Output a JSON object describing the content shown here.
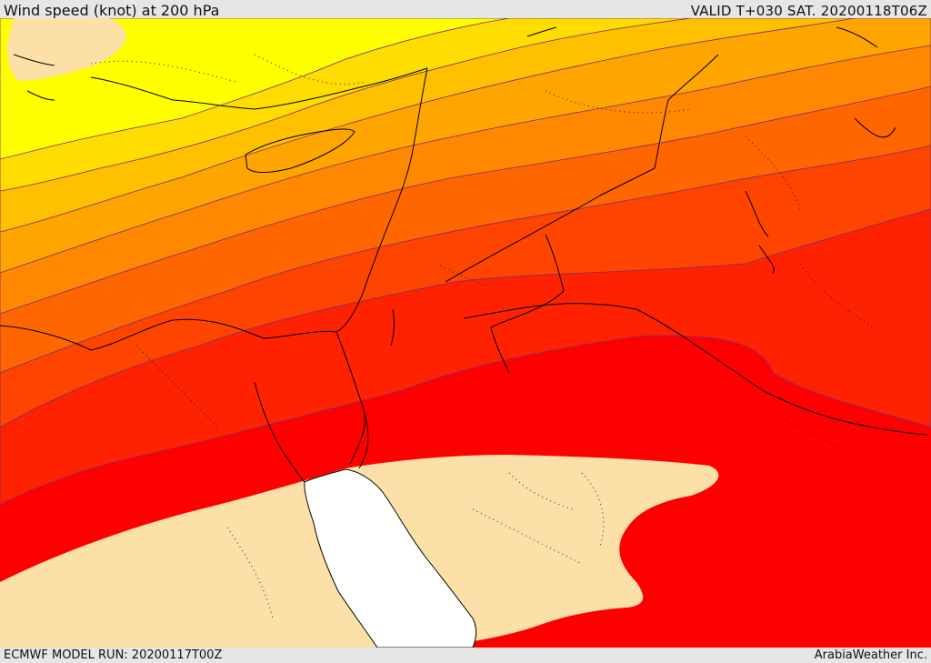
{
  "header": {
    "title": "Wind speed (knot) at 200 hPa",
    "valid": "VALID T+030 SAT. 20200118T06Z"
  },
  "footer": {
    "model_run": "ECMWF MODEL RUN: 20200117T00Z",
    "credit": "ArabiaWeather Inc."
  },
  "map": {
    "variable": "wind speed",
    "level": "200 hPa",
    "units": "knot",
    "colors": {
      "land_low": "#fce0a8",
      "yellow": "#ffff00",
      "band_1": "#ffdd00",
      "band_2": "#ffc000",
      "band_3": "#ffa500",
      "band_4": "#ff8800",
      "band_5": "#ff6600",
      "band_6": "#ff4400",
      "band_7": "#ff2200",
      "band_8": "#ff0000",
      "sea_masked": "#ffffff"
    }
  }
}
